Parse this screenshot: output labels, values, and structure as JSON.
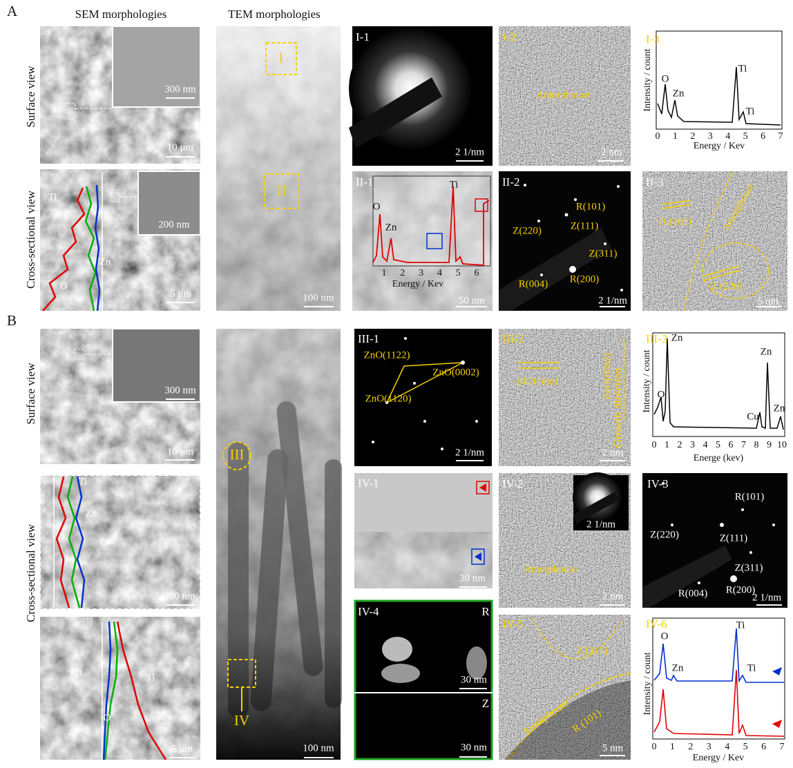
{
  "panel_a": {
    "label": "A",
    "sem_title": "SEM morphologies",
    "tem_title": "TEM morphologies",
    "sem_surface": {
      "row_label": "Surface view",
      "inset_scale_bar": "300 nm",
      "scale_bar": "10 μm"
    },
    "sem_cross_section": {
      "row_label": "Cross-sectional view",
      "line_labels": [
        "Ti",
        "Zn",
        "O"
      ],
      "inset_scale_bar": "200 nm",
      "scale_bar": "5 μm"
    },
    "tem": {
      "regions": [
        "I",
        "II"
      ],
      "scale_bar": "100 nm"
    },
    "i_1": {
      "label": "I-1",
      "scale_bar": "2 1/nm"
    },
    "i_2": {
      "label": "I-2",
      "annotation": "Amorphouse",
      "scale_bar": "2 nm"
    },
    "i_3": {
      "label": "I-3",
      "y_label": "Intensity / count",
      "x_label": "Energy / Kev",
      "xticks": [
        0,
        1,
        2,
        3,
        4,
        5,
        6,
        7
      ],
      "peaks": [
        "O",
        "Zn",
        "Ti",
        "Ti"
      ]
    },
    "ii_1": {
      "label": "II-1",
      "peaks": [
        "O",
        "Zn",
        "Ti"
      ],
      "xticks": [
        1,
        2,
        3,
        4,
        5,
        6
      ],
      "x_label": "Energy / Kev",
      "scale_bar": "50 nm"
    },
    "ii_2": {
      "label": "II-2",
      "spots": [
        "R(101)",
        "Z(220)",
        "Z(111)",
        "Z(311)",
        "R(004)",
        "R(200)"
      ],
      "scale_bar": "2 1/nm"
    },
    "ii_3": {
      "label": "II-3",
      "annotations": [
        "R (101)",
        "Amorphouse",
        "Z (220)"
      ],
      "scale_bar": "5 nm"
    }
  },
  "panel_b": {
    "label": "B",
    "sem_surface": {
      "row_label": "Surface view",
      "inset_scale_bar": "300 nm",
      "scale_bar": "10 μm"
    },
    "sem_cross_section": {
      "row_label": "Cross-sectional view",
      "inset_line_labels": [
        "Ti",
        "Zn",
        "O"
      ],
      "inset_scale_bar": "200 nm",
      "line_labels": [
        "Zn",
        "Ti",
        "O"
      ],
      "scale_bar": "5 μm"
    },
    "tem": {
      "regions": [
        "III",
        "IV"
      ],
      "scale_bar": "100 nm"
    },
    "iii_1": {
      "label": "III-1",
      "spots": [
        "ZnO(1122)",
        "ZnO(0002)",
        "ZnO(1120)"
      ],
      "scale_bar": "2 1/nm"
    },
    "iii_2": {
      "label": "III-2",
      "annotations": [
        "(0.26 nm)",
        "ZnO(0002)",
        "Growth direction"
      ],
      "scale_bar": "2 nm"
    },
    "iii_3": {
      "label": "III-3",
      "y_label": "Intensity / count",
      "x_label": "Energe (kev)",
      "xticks": [
        0,
        1,
        2,
        3,
        4,
        5,
        6,
        7,
        8,
        9,
        10
      ],
      "peaks": [
        "O",
        "Zn",
        "Cu",
        "Zn",
        "Zn"
      ]
    },
    "iv_1": {
      "label": "IV-1",
      "scale_bar": "30 nm"
    },
    "iv_2": {
      "label": "IV-2",
      "inset_scale_bar": "2 1/nm",
      "annotation": "Amorphouse",
      "scale_bar": "2 nm"
    },
    "iv_3": {
      "label": "IV-3",
      "spots": [
        "R(101)",
        "Z(220)",
        "Z(111)",
        "Z(311)",
        "R(200)",
        "R(004)"
      ],
      "scale_bar": "2 1/nm"
    },
    "iv_4": {
      "label": "IV-4",
      "top_label": "R",
      "top_scale_bar": "30 nm",
      "bottom_label": "Z",
      "bottom_scale_bar": "30 nm"
    },
    "iv_5": {
      "label": "IV-5",
      "annotations": [
        "Z (311)",
        "Amorphouse",
        "R (101)"
      ],
      "scale_bar": "5 nm"
    },
    "iv_6": {
      "label": "IV-6",
      "y_label": "Intensity / count",
      "x_label": "Energy / Kev",
      "xticks": [
        0,
        1,
        2,
        3,
        4,
        5,
        6,
        7
      ],
      "peaks": [
        "O",
        "Zn",
        "Ti",
        "Ti"
      ]
    }
  }
}
